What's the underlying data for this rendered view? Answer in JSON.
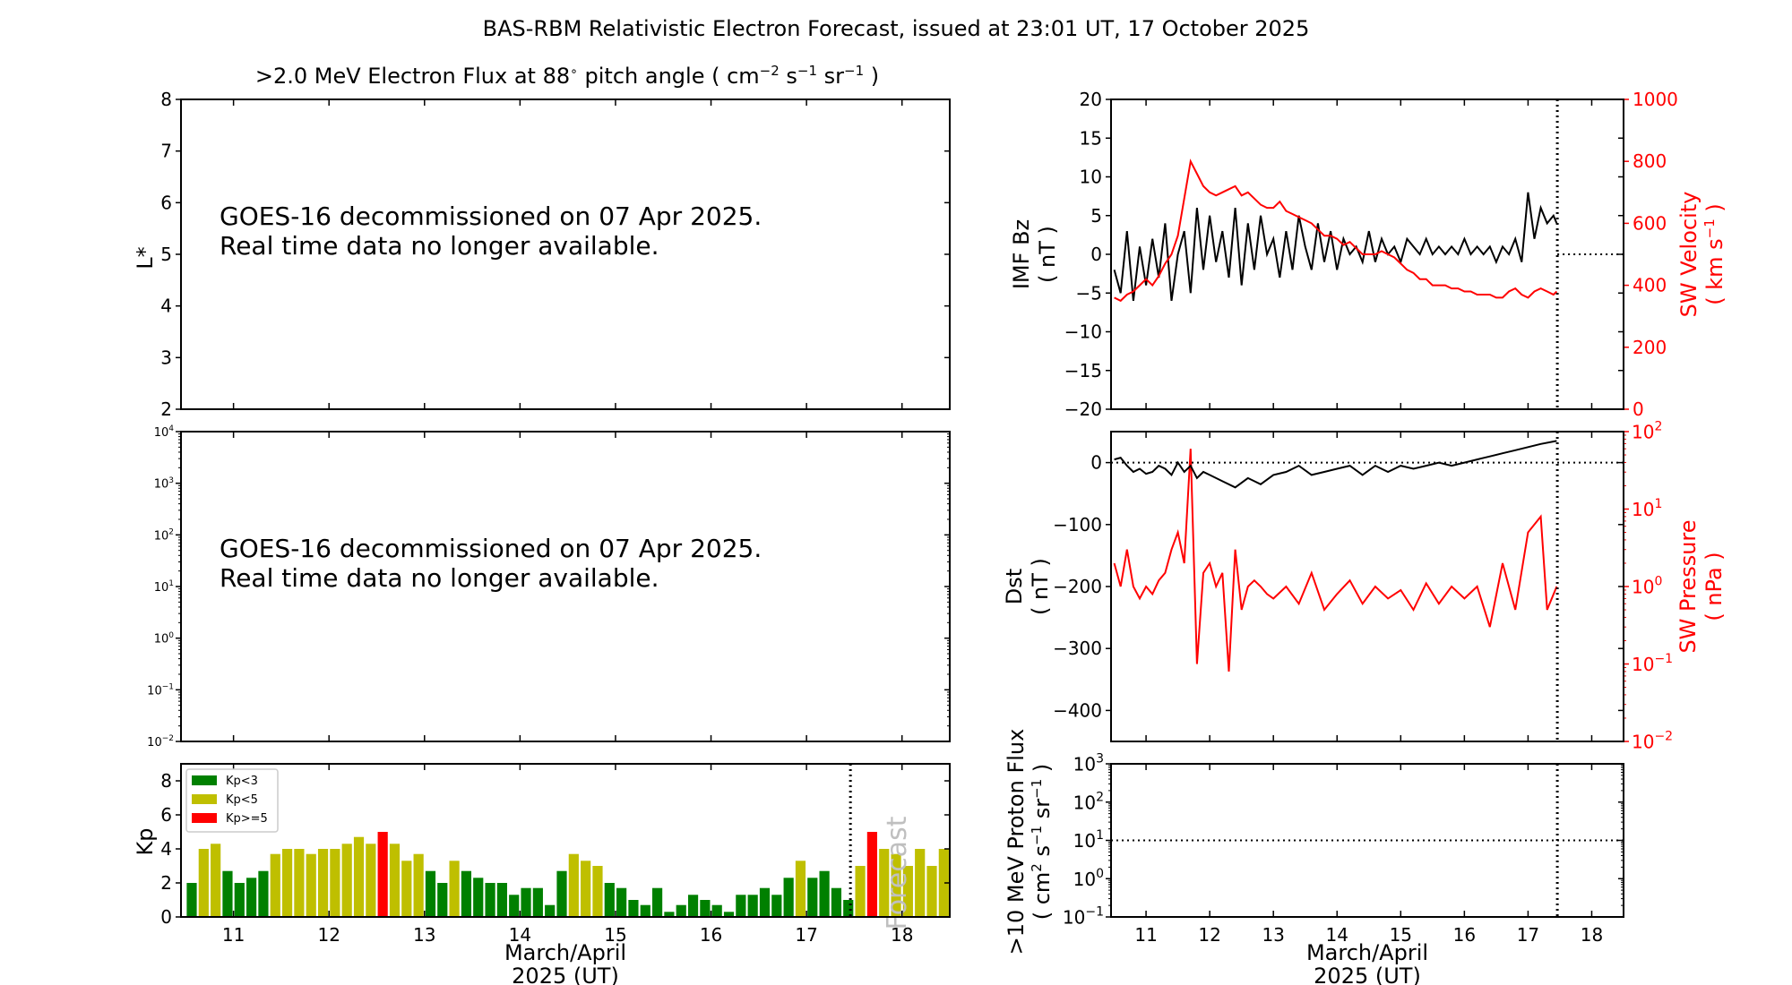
{
  "title": "BAS-RBM Relativistic Electron Forecast, issued at 23:01 UT, 17 October 2025",
  "colors": {
    "axis": "#000000",
    "red": "#ff0000",
    "kp_low": "#008000",
    "kp_mid": "#bfbf00",
    "kp_high": "#ff0000",
    "forecast_text": "#bfbfbf"
  },
  "xaxis": {
    "range": [
      10.45,
      18.5
    ],
    "ticks": [
      "11",
      "12",
      "13",
      "14",
      "15",
      "16",
      "17",
      "18"
    ],
    "label_line1": "March/April",
    "label_line2": "2025 (UT)",
    "now": 17.46
  },
  "panels": {
    "electron_lstar": {
      "title_prefix": ">2.0 MeV Electron Flux at 88",
      "title_degree": "∘",
      "title_mid": " pitch angle ( cm",
      "title_exp1": "−2",
      "title_s": " s",
      "title_exp2": "−1",
      "title_sr": " sr",
      "title_exp3": "−1",
      "title_end": " )",
      "ylabel": "L*",
      "ylim": [
        2,
        8
      ],
      "yticks": [
        "2",
        "3",
        "4",
        "5",
        "6",
        "7",
        "8"
      ],
      "message_line1": "GOES-16 decommissioned on 07 Apr 2025.",
      "message_line2": "Real time data no longer available."
    },
    "electron_flux": {
      "ylim_exp": [
        -2,
        4
      ],
      "ytick_exps": [
        "−2",
        "−1",
        "0",
        "1",
        "2",
        "3",
        "4"
      ],
      "message_line1": "GOES-16 decommissioned on 07 Apr 2025.",
      "message_line2": "Real time data no longer available."
    },
    "kp": {
      "ylabel": "Kp",
      "ylim": [
        0,
        9
      ],
      "yticks": [
        "0",
        "2",
        "4",
        "6",
        "8"
      ],
      "legend": [
        "Kp<3",
        "Kp<5",
        "Kp>=5"
      ],
      "forecast_label": "Forecast"
    },
    "imf": {
      "ylabel_line1": "IMF Bz",
      "ylabel_line2": "( nT )",
      "ylim": [
        -20,
        20
      ],
      "yticks": [
        "−20",
        "−15",
        "−10",
        "−5",
        "0",
        "5",
        "10",
        "15",
        "20"
      ],
      "y2label_line1": "SW Velocity",
      "y2label_line2": "( km s",
      "y2label_exp": "−1",
      "y2label_end": " )",
      "y2lim": [
        0,
        1000
      ],
      "y2ticks": [
        "0",
        "200",
        "400",
        "600",
        "800",
        "1000"
      ]
    },
    "dst": {
      "ylabel_line1": "Dst",
      "ylabel_line2": "( nT )",
      "ylim": [
        -450,
        50
      ],
      "yticks": [
        "−400",
        "−300",
        "−200",
        "−100",
        "0"
      ],
      "y2label_line1": "SW Pressure",
      "y2label_line2": "( nPa )",
      "y2lim_exp": [
        -2,
        2
      ],
      "y2tick_exps": [
        "−2",
        "−1",
        "0",
        "1",
        "2"
      ]
    },
    "proton": {
      "ylabel_line1": ">10 MeV Proton Flux",
      "ylabel_line2a": "( cm",
      "ylabel_exp1": "2",
      "ylabel_line2b": " s",
      "ylabel_exp2": "−1",
      "ylabel_line2c": " sr",
      "ylabel_exp3": "−1",
      "ylabel_line2d": " )",
      "ylim_exp": [
        -1,
        3
      ],
      "ytick_exps": [
        "−1",
        "0",
        "1",
        "2",
        "3"
      ],
      "threshold": 10
    }
  },
  "chart_data": [
    {
      "type": "bar",
      "title": "",
      "ylabel": "Kp",
      "ylim": [
        0,
        9
      ],
      "bar_width_days": 0.125,
      "observed": {
        "start": 10.5,
        "values": [
          2.0,
          4.0,
          4.3,
          2.7,
          2.0,
          2.3,
          2.7,
          3.7,
          4.0,
          4.0,
          3.7,
          4.0,
          4.0,
          4.3,
          4.7,
          4.3,
          5.0,
          4.3,
          3.3,
          3.7,
          2.7,
          2.0,
          3.3,
          2.7,
          2.3,
          2.0,
          2.0,
          1.3,
          1.7,
          1.7,
          0.7,
          2.7,
          3.7,
          3.3,
          3.0,
          2.0,
          1.7,
          1.0,
          0.7,
          1.7,
          0.3,
          0.7,
          1.3,
          1.0,
          0.7,
          0.3,
          1.3,
          1.3,
          1.7,
          1.3,
          2.3,
          3.3,
          2.3,
          2.7,
          1.7,
          1.0
        ]
      },
      "forecast": {
        "start": 17.5,
        "values": [
          3.0,
          5.0,
          4.0,
          3.7,
          3.0,
          4.0,
          3.0,
          4.0
        ]
      }
    },
    {
      "type": "line",
      "title": "",
      "series": [
        {
          "axis": "left",
          "ylabel": "IMF Bz ( nT )",
          "x": [
            10.5,
            10.6,
            10.7,
            10.8,
            10.9,
            11.0,
            11.1,
            11.2,
            11.3,
            11.4,
            11.5,
            11.6,
            11.7,
            11.8,
            11.9,
            12.0,
            12.1,
            12.2,
            12.3,
            12.4,
            12.5,
            12.6,
            12.7,
            12.8,
            12.9,
            13.0,
            13.1,
            13.2,
            13.3,
            13.4,
            13.5,
            13.6,
            13.7,
            13.8,
            13.9,
            14.0,
            14.1,
            14.2,
            14.3,
            14.4,
            14.5,
            14.6,
            14.7,
            14.8,
            14.9,
            15.0,
            15.1,
            15.2,
            15.3,
            15.4,
            15.5,
            15.6,
            15.7,
            15.8,
            15.9,
            16.0,
            16.1,
            16.2,
            16.3,
            16.4,
            16.5,
            16.6,
            16.7,
            16.8,
            16.9,
            17.0,
            17.1,
            17.2,
            17.3,
            17.4,
            17.45
          ],
          "y": [
            -2,
            -5,
            3,
            -6,
            1,
            -4,
            2,
            -3,
            4,
            -6,
            0,
            3,
            -5,
            6,
            -2,
            5,
            -1,
            3,
            -3,
            6,
            -4,
            4,
            -2,
            5,
            0,
            2,
            -3,
            3,
            -2,
            5,
            1,
            -2,
            4,
            -1,
            3,
            -2,
            2,
            0,
            1,
            -1,
            3,
            -1,
            2,
            0,
            1,
            -1,
            2,
            1,
            0,
            2,
            0,
            1,
            0,
            1,
            0,
            2,
            0,
            1,
            0,
            1,
            -1,
            1,
            0,
            2,
            -1,
            8,
            2,
            6,
            4,
            5,
            4
          ]
        },
        {
          "axis": "right",
          "ylabel": "SW Velocity ( km s−1 )",
          "x": [
            10.5,
            10.6,
            10.7,
            10.8,
            10.9,
            11.0,
            11.1,
            11.2,
            11.3,
            11.4,
            11.5,
            11.6,
            11.7,
            11.8,
            11.9,
            12.0,
            12.1,
            12.2,
            12.3,
            12.4,
            12.5,
            12.6,
            12.7,
            12.8,
            12.9,
            13.0,
            13.1,
            13.2,
            13.3,
            13.4,
            13.5,
            13.6,
            13.7,
            13.8,
            13.9,
            14.0,
            14.1,
            14.2,
            14.3,
            14.4,
            14.5,
            14.6,
            14.7,
            14.8,
            14.9,
            15.0,
            15.1,
            15.2,
            15.3,
            15.4,
            15.5,
            15.6,
            15.7,
            15.8,
            15.9,
            16.0,
            16.1,
            16.2,
            16.3,
            16.4,
            16.5,
            16.6,
            16.7,
            16.8,
            16.9,
            17.0,
            17.1,
            17.2,
            17.3,
            17.4,
            17.45
          ],
          "y": [
            360,
            350,
            370,
            380,
            400,
            420,
            400,
            430,
            470,
            500,
            560,
            680,
            800,
            760,
            720,
            700,
            690,
            700,
            710,
            720,
            690,
            700,
            680,
            660,
            650,
            650,
            670,
            640,
            630,
            620,
            610,
            600,
            580,
            560,
            560,
            550,
            530,
            540,
            520,
            500,
            500,
            500,
            510,
            500,
            490,
            470,
            450,
            440,
            420,
            420,
            400,
            400,
            400,
            390,
            390,
            380,
            380,
            370,
            370,
            370,
            360,
            360,
            380,
            390,
            370,
            360,
            380,
            390,
            380,
            370,
            380
          ]
        }
      ],
      "ylim": [
        -20,
        20
      ],
      "y2lim": [
        0,
        1000
      ]
    },
    {
      "type": "line",
      "title": "",
      "series": [
        {
          "axis": "left",
          "ylabel": "Dst ( nT )",
          "x": [
            10.5,
            10.6,
            10.7,
            10.8,
            10.9,
            11.0,
            11.1,
            11.2,
            11.3,
            11.4,
            11.5,
            11.6,
            11.7,
            11.8,
            11.9,
            12.0,
            12.2,
            12.4,
            12.6,
            12.8,
            13.0,
            13.2,
            13.4,
            13.6,
            13.8,
            14.0,
            14.2,
            14.4,
            14.6,
            14.8,
            15.0,
            15.2,
            15.4,
            15.6,
            15.8,
            16.0,
            16.2,
            16.4,
            16.6,
            16.8,
            17.0,
            17.2,
            17.45
          ],
          "y": [
            5,
            8,
            -5,
            -15,
            -10,
            -18,
            -15,
            -5,
            -10,
            -20,
            0,
            -15,
            -5,
            -25,
            -15,
            -20,
            -30,
            -40,
            -25,
            -35,
            -20,
            -15,
            -5,
            -20,
            -15,
            -10,
            -5,
            -20,
            -5,
            -15,
            -5,
            -10,
            -5,
            0,
            -5,
            0,
            5,
            10,
            15,
            20,
            25,
            30,
            35
          ]
        },
        {
          "axis": "right",
          "scale": "log",
          "ylabel": "SW Pressure ( nPa )",
          "x": [
            10.5,
            10.6,
            10.7,
            10.8,
            10.9,
            11.0,
            11.1,
            11.2,
            11.3,
            11.4,
            11.5,
            11.6,
            11.7,
            11.8,
            11.9,
            12.0,
            12.1,
            12.2,
            12.3,
            12.4,
            12.5,
            12.6,
            12.7,
            12.8,
            12.9,
            13.0,
            13.2,
            13.4,
            13.6,
            13.8,
            14.0,
            14.2,
            14.4,
            14.6,
            14.8,
            15.0,
            15.2,
            15.4,
            15.6,
            15.8,
            16.0,
            16.2,
            16.4,
            16.6,
            16.8,
            17.0,
            17.2,
            17.3,
            17.45
          ],
          "y": [
            2.0,
            1.0,
            3.0,
            1.0,
            0.7,
            1.0,
            0.8,
            1.2,
            1.5,
            3.0,
            5.0,
            2.0,
            60,
            0.1,
            1.5,
            2.0,
            1.0,
            1.5,
            0.08,
            3.0,
            0.5,
            1.0,
            1.2,
            1.0,
            0.8,
            0.7,
            1.0,
            0.6,
            1.5,
            0.5,
            0.8,
            1.2,
            0.6,
            1.0,
            0.7,
            0.9,
            0.5,
            1.1,
            0.6,
            1.0,
            0.7,
            1.0,
            0.3,
            2.0,
            0.5,
            5.0,
            8.0,
            0.5,
            1.0
          ]
        }
      ],
      "ylim": [
        -450,
        50
      ],
      "y2lim": [
        0.01,
        100
      ]
    },
    {
      "type": "line",
      "title": "",
      "ylabel": ">10 MeV Proton Flux ( cm2 s−1 sr−1 )",
      "scale": "log",
      "ylim": [
        0.1,
        1000
      ],
      "series": []
    }
  ]
}
